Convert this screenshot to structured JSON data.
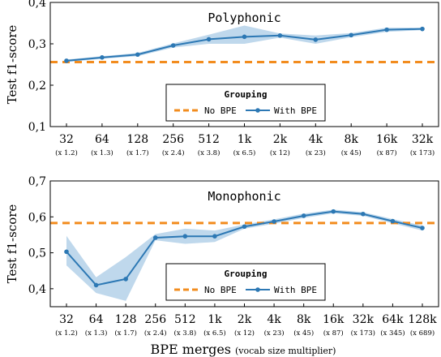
{
  "chart_data": [
    {
      "type": "line",
      "title": "Polyphonic",
      "ylabel": "Test f1-score",
      "ylim": [
        0.1,
        0.4
      ],
      "yticks": [
        "0,1",
        "0,2",
        "0,3",
        "0,4"
      ],
      "categories": [
        "32",
        "64",
        "128",
        "256",
        "512",
        "1k",
        "2k",
        "4k",
        "8k",
        "16k",
        "32k"
      ],
      "multipliers": [
        "(x 1.2)",
        "(x 1.3)",
        "(x 1.7)",
        "(x 2.4)",
        "(x 3.8)",
        "(x 6.5)",
        "(x 12)",
        "(x 23)",
        "(x 45)",
        "(x 87)",
        "(x 173)"
      ],
      "series": [
        {
          "name": "With BPE",
          "values": [
            0.259,
            0.267,
            0.274,
            0.296,
            0.311,
            0.317,
            0.32,
            0.31,
            0.321,
            0.334,
            0.336
          ],
          "lower": [
            0.256,
            0.264,
            0.27,
            0.291,
            0.3,
            0.3,
            0.315,
            0.3,
            0.316,
            0.329,
            0.333
          ],
          "upper": [
            0.262,
            0.27,
            0.278,
            0.301,
            0.322,
            0.344,
            0.325,
            0.32,
            0.326,
            0.339,
            0.339
          ]
        }
      ],
      "baseline": {
        "name": "No BPE",
        "value": 0.256
      },
      "legend": {
        "title": "Grouping",
        "position": "bottom-center"
      },
      "grid": false
    },
    {
      "type": "line",
      "title": "Monophonic",
      "ylabel": "Test f1-score",
      "xlabel": "BPE merges",
      "xlabel_note": "(vocab size multiplier)",
      "ylim": [
        0.35,
        0.7
      ],
      "yticks": [
        "0,4",
        "0,5",
        "0,6",
        "0,7"
      ],
      "categories": [
        "32",
        "64",
        "128",
        "256",
        "512",
        "1k",
        "2k",
        "4k",
        "8k",
        "16k",
        "32k",
        "64k",
        "128k"
      ],
      "multipliers": [
        "(x 1.2)",
        "(x 1.3)",
        "(x 1.7)",
        "(x 2.4)",
        "(x 3.8)",
        "(x 6.5)",
        "(x 12)",
        "(x 23)",
        "(x 45)",
        "(x 87)",
        "(x 173)",
        "(x 345)",
        "(x 689)"
      ],
      "series": [
        {
          "name": "With BPE",
          "values": [
            0.503,
            0.41,
            0.427,
            0.542,
            0.546,
            0.546,
            0.573,
            0.587,
            0.603,
            0.615,
            0.608,
            0.588,
            0.569
          ],
          "lower": [
            0.465,
            0.388,
            0.366,
            0.535,
            0.525,
            0.53,
            0.567,
            0.581,
            0.597,
            0.61,
            0.603,
            0.582,
            0.562
          ],
          "upper": [
            0.547,
            0.432,
            0.488,
            0.552,
            0.567,
            0.562,
            0.579,
            0.593,
            0.609,
            0.62,
            0.613,
            0.594,
            0.576
          ]
        }
      ],
      "baseline": {
        "name": "No BPE",
        "value": 0.583
      },
      "legend": {
        "title": "Grouping",
        "position": "bottom-center"
      },
      "grid": false
    }
  ],
  "colors": {
    "series": "#2c78b4",
    "band": "#a9cbe5",
    "baseline": "#f28c1e",
    "axis": "#000000"
  }
}
